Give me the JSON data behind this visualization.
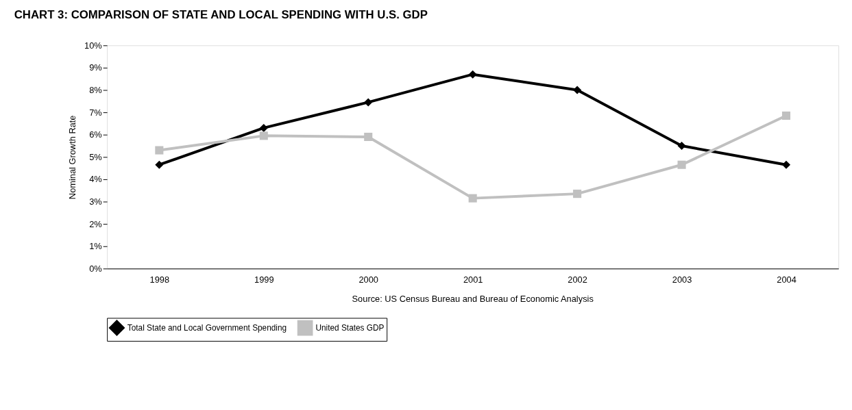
{
  "chart_data": {
    "type": "line",
    "title": "CHART 3:  COMPARISON OF STATE AND LOCAL SPENDING WITH U.S. GDP",
    "ylabel": "Nominal Growth Rate",
    "categories": [
      "1998",
      "1999",
      "2000",
      "2001",
      "2002",
      "2003",
      "2004"
    ],
    "series": [
      {
        "name": "Total State and Local Government Spending",
        "color": "#000000",
        "marker": "diamond",
        "values": [
          4.65,
          6.3,
          7.45,
          8.7,
          8.0,
          5.5,
          4.65
        ]
      },
      {
        "name": "United States GDP",
        "color": "#c0c0c0",
        "marker": "square",
        "values": [
          5.3,
          5.95,
          5.9,
          3.15,
          3.35,
          4.65,
          6.85
        ]
      }
    ],
    "ylim": [
      0,
      10
    ],
    "yticks": [
      {
        "value": 0,
        "label": "0%"
      },
      {
        "value": 1,
        "label": "1%"
      },
      {
        "value": 2,
        "label": "2%"
      },
      {
        "value": 3,
        "label": "3%"
      },
      {
        "value": 4,
        "label": "4%"
      },
      {
        "value": 5,
        "label": "5%"
      },
      {
        "value": 6,
        "label": "6%"
      },
      {
        "value": 7,
        "label": "7%"
      },
      {
        "value": 8,
        "label": "8%"
      },
      {
        "value": 9,
        "label": "9%"
      },
      {
        "value": 10,
        "label": "10%"
      }
    ],
    "annotations": [
      "Source:  US Census Bureau and Bureau of Economic Analysis"
    ],
    "grid": false,
    "legend": "bottom",
    "line_style": "solid"
  }
}
